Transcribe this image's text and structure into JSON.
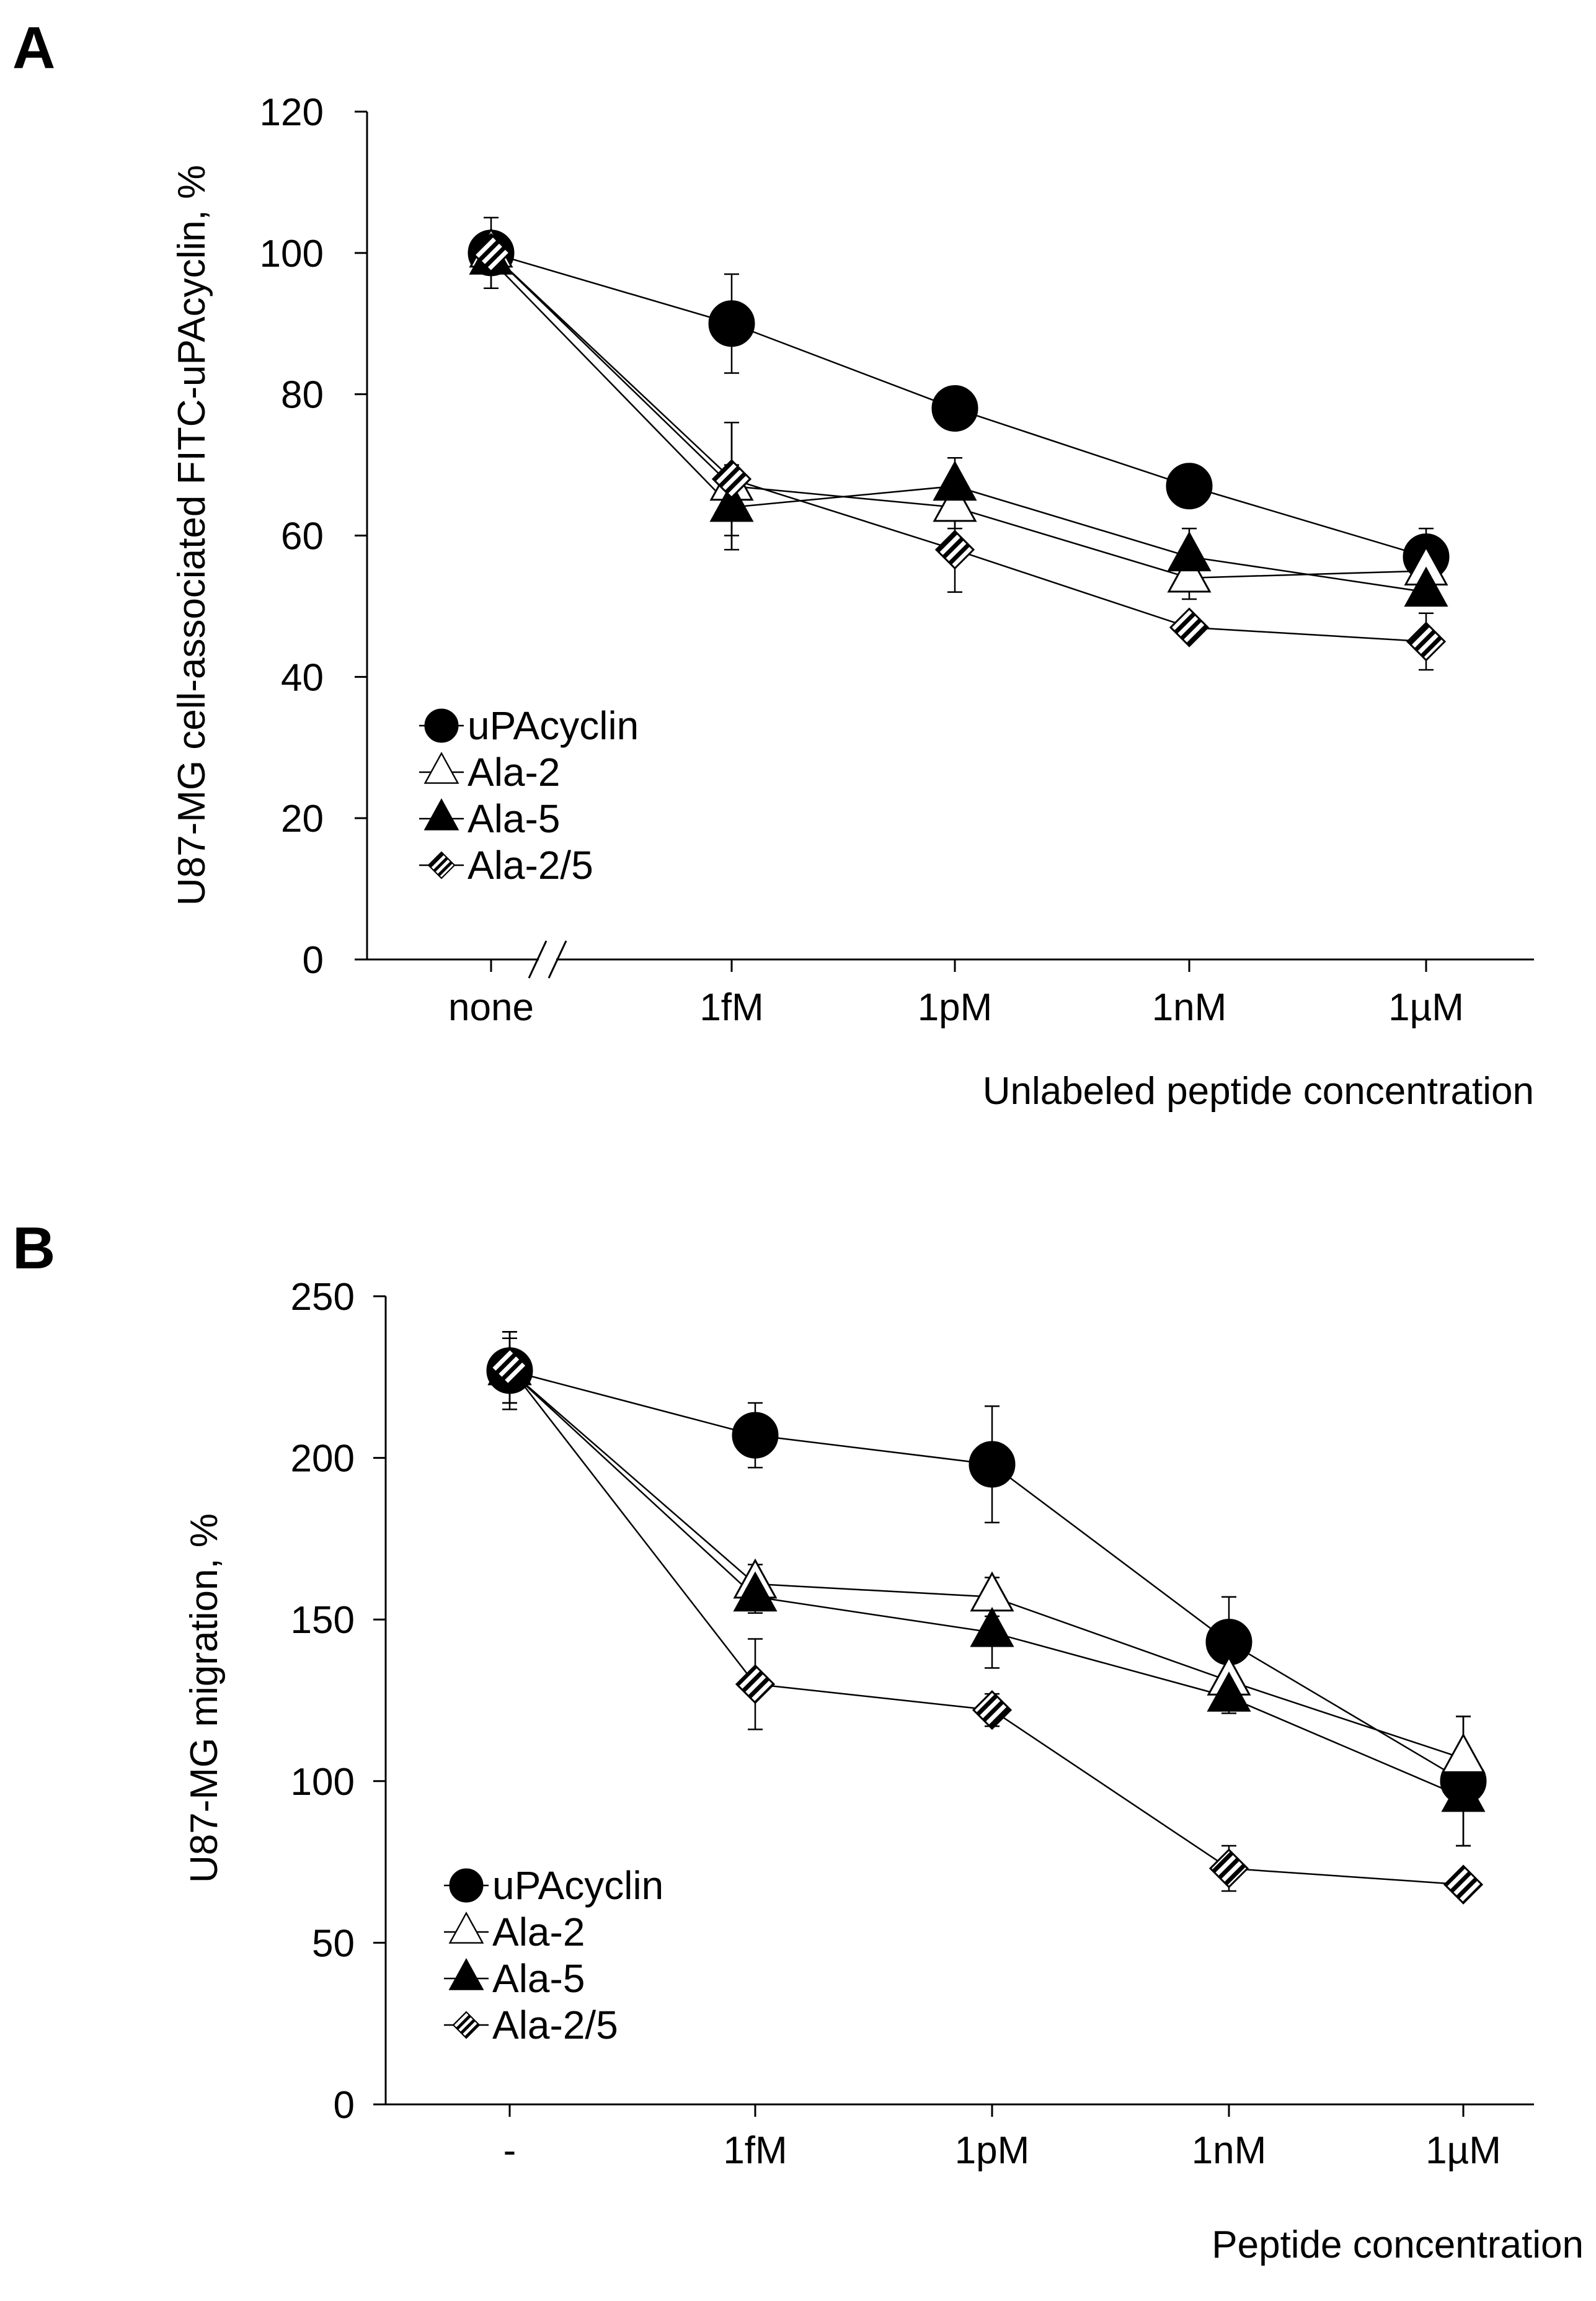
{
  "colors": {
    "axis": "#000000",
    "marker_fill_dark": "#000000",
    "marker_fill_light": "#ffffff",
    "background": "#ffffff"
  },
  "chart_data": [
    {
      "panel": "A",
      "type": "line",
      "title": "",
      "xlabel": "Unlabeled peptide concentration",
      "ylabel": "U87-MG cell-associated FITC-uPAcyclin, %",
      "categories": [
        "none",
        "1fM",
        "1pM",
        "1nM",
        "1µM"
      ],
      "ylim": [
        0,
        120
      ],
      "yticks": [
        0,
        20,
        40,
        60,
        80,
        100,
        120
      ],
      "axis_break": "//",
      "grid": false,
      "legend": "bottom-left",
      "series": [
        {
          "name": "uPAcyclin",
          "marker": "filled-circle",
          "values": [
            100,
            90,
            78,
            67,
            57
          ],
          "errors": [
            5,
            7,
            null,
            null,
            4
          ]
        },
        {
          "name": "Ala-2",
          "marker": "open-triangle",
          "values": [
            100,
            67,
            64,
            54,
            55
          ],
          "errors": [
            null,
            9,
            3,
            3,
            null
          ]
        },
        {
          "name": "Ala-5",
          "marker": "filled-triangle",
          "values": [
            99,
            64,
            67,
            57,
            52
          ],
          "errors": [
            4,
            6,
            4,
            4,
            null
          ]
        },
        {
          "name": "Ala-2/5",
          "marker": "hatched-diamond",
          "values": [
            100,
            68,
            58,
            47,
            45
          ],
          "errors": [
            null,
            8,
            6,
            1,
            4
          ]
        }
      ]
    },
    {
      "panel": "B",
      "type": "line",
      "title": "",
      "xlabel": "Peptide concentration",
      "ylabel": "U87-MG migration, %",
      "categories": [
        "-",
        "1fM",
        "1pM",
        "1nM",
        "1µM"
      ],
      "ylim": [
        0,
        250
      ],
      "yticks": [
        0,
        50,
        100,
        150,
        200,
        250
      ],
      "grid": false,
      "legend": "bottom-left",
      "series": [
        {
          "name": "uPAcyclin",
          "marker": "filled-circle",
          "values": [
            227,
            207,
            198,
            143,
            100
          ],
          "errors": [
            12,
            10,
            18,
            14,
            20
          ]
        },
        {
          "name": "Ala-2",
          "marker": "open-triangle",
          "values": [
            227,
            161,
            157,
            131,
            107
          ],
          "errors": [
            null,
            6,
            6,
            6,
            13
          ]
        },
        {
          "name": "Ala-5",
          "marker": "filled-triangle",
          "values": [
            227,
            157,
            146,
            126,
            95
          ],
          "errors": [
            10,
            5,
            11,
            5,
            15
          ]
        },
        {
          "name": "Ala-2/5",
          "marker": "hatched-diamond",
          "values": [
            228,
            130,
            122,
            73,
            68
          ],
          "errors": [
            11,
            14,
            5,
            7,
            2
          ]
        }
      ]
    }
  ]
}
